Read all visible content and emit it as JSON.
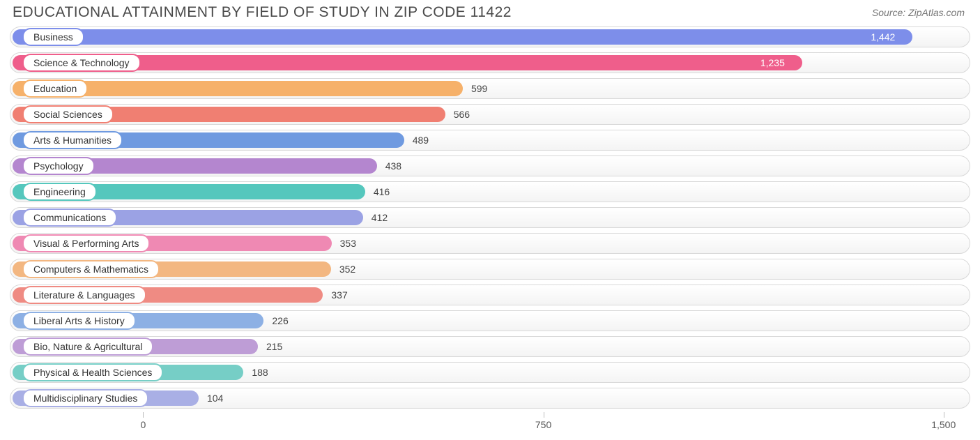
{
  "header": {
    "title": "EDUCATIONAL ATTAINMENT BY FIELD OF STUDY IN ZIP CODE 11422",
    "source": "Source: ZipAtlas.com"
  },
  "chart": {
    "type": "bar",
    "orientation": "horizontal",
    "xlim": [
      -250,
      1550
    ],
    "xticks": [
      0,
      750,
      1500
    ],
    "xtick_labels": [
      "0",
      "750",
      "1,500"
    ],
    "track_border_color": "#d8d8d8",
    "track_bg_top": "#ffffff",
    "track_bg_bottom": "#f4f4f4",
    "background_color": "#ffffff",
    "label_fontsize": 14,
    "title_fontsize": 21,
    "title_color": "#4a4a4a",
    "bar_radius": 12,
    "colors": [
      "#7d8eea",
      "#ef5e8b",
      "#f6b16a",
      "#f07f72",
      "#6f9ae0",
      "#b486cf",
      "#55c7bd",
      "#9ba2e4",
      "#ef89b3",
      "#f3b781",
      "#ef8b83",
      "#8db0e4",
      "#be9dd6",
      "#76cec6",
      "#a9afe5"
    ],
    "items": [
      {
        "label": "Business",
        "value": 1442,
        "display": "1,442"
      },
      {
        "label": "Science & Technology",
        "value": 1235,
        "display": "1,235"
      },
      {
        "label": "Education",
        "value": 599,
        "display": "599"
      },
      {
        "label": "Social Sciences",
        "value": 566,
        "display": "566"
      },
      {
        "label": "Arts & Humanities",
        "value": 489,
        "display": "489"
      },
      {
        "label": "Psychology",
        "value": 438,
        "display": "438"
      },
      {
        "label": "Engineering",
        "value": 416,
        "display": "416"
      },
      {
        "label": "Communications",
        "value": 412,
        "display": "412"
      },
      {
        "label": "Visual & Performing Arts",
        "value": 353,
        "display": "353"
      },
      {
        "label": "Computers & Mathematics",
        "value": 352,
        "display": "352"
      },
      {
        "label": "Literature & Languages",
        "value": 337,
        "display": "337"
      },
      {
        "label": "Liberal Arts & History",
        "value": 226,
        "display": "226"
      },
      {
        "label": "Bio, Nature & Agricultural",
        "value": 215,
        "display": "215"
      },
      {
        "label": "Physical & Health Sciences",
        "value": 188,
        "display": "188"
      },
      {
        "label": "Multidisciplinary Studies",
        "value": 104,
        "display": "104"
      }
    ]
  }
}
